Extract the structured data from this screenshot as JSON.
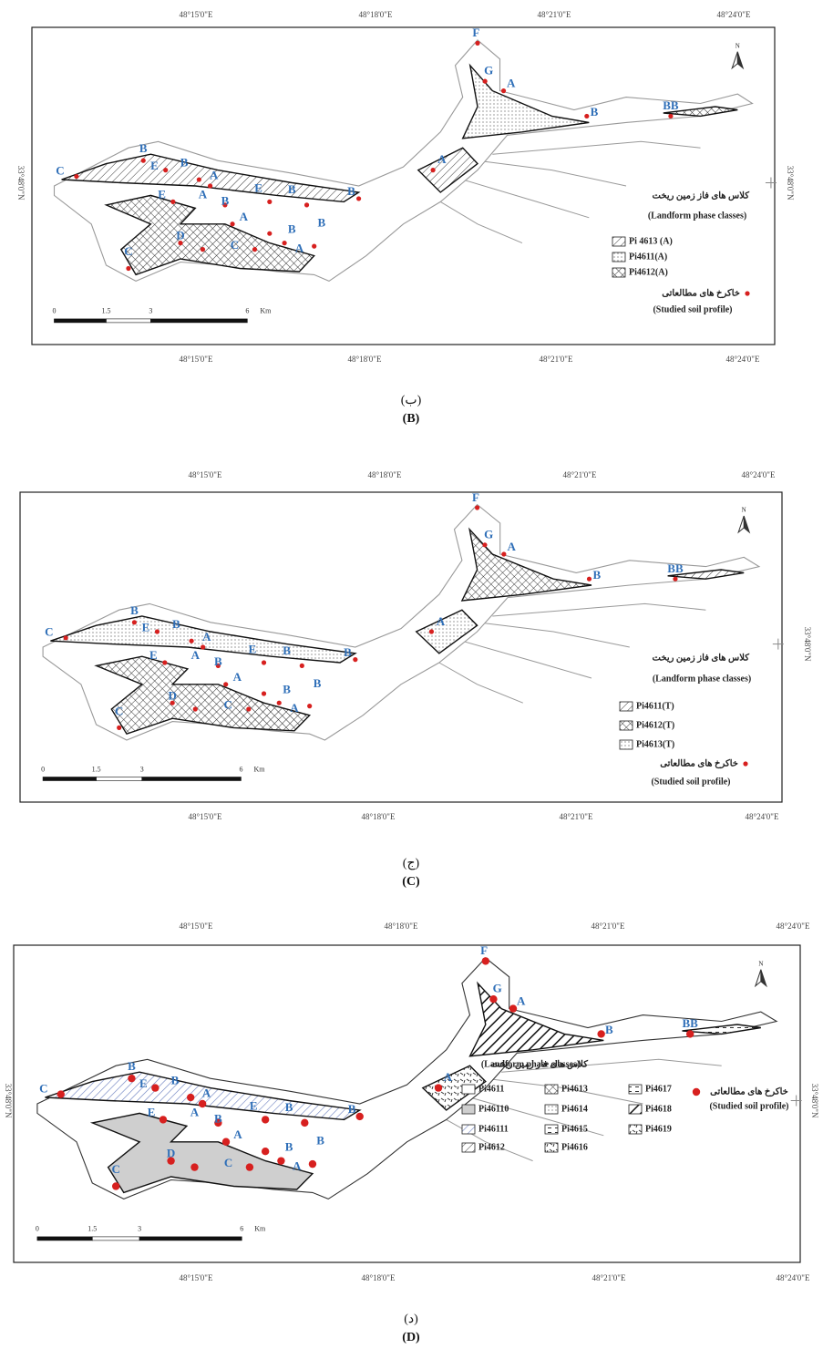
{
  "figure": {
    "panels": [
      {
        "caption_fa": "(ب)",
        "caption_en": "(B)",
        "top_ticks": [
          "48°15'0\"E",
          "48°18'0\"E",
          "48°21'0\"E",
          "48°24'0\"E"
        ],
        "bottom_ticks": [
          "48°15'0\"E",
          "48°18'0\"E",
          "48°21'0\"E",
          "48°24'0\"E"
        ],
        "left_label": "33°48'0\"N",
        "right_label": "33°48'0\"N",
        "north": "N",
        "scale": [
          "0",
          "1.5",
          "3",
          "6",
          "Km"
        ],
        "legend": {
          "title_fa": "کلاس های فاز زمین ریخت",
          "title_en": "(Landform phase classes)",
          "entries": [
            "Pi 4613 (A)",
            "Pi4611(A)",
            "Pi4612(A)"
          ],
          "profile_fa": "خاکرخ های مطالعاتی",
          "profile_en": "(Studied soil profile)"
        },
        "map_labels": [
          "F",
          "G",
          "A",
          "B",
          "BB",
          "A",
          "C",
          "B",
          "E",
          "B",
          "A",
          "E",
          "A",
          "B",
          "E",
          "B",
          "B",
          "A",
          "B",
          "C",
          "C",
          "D",
          "A",
          "B"
        ]
      },
      {
        "caption_fa": "(ج)",
        "caption_en": "(C)",
        "top_ticks": [
          "48°15'0\"E",
          "48°18'0\"E",
          "48°21'0\"E",
          "48°24'0\"E"
        ],
        "bottom_ticks": [
          "48°15'0\"E",
          "48°18'0\"E",
          "48°21'0\"E",
          "48°24'0\"E"
        ],
        "right_label": "33°48'0\"N",
        "north": "N",
        "scale": [
          "0",
          "1.5",
          "3",
          "6",
          "Km"
        ],
        "legend": {
          "title_fa": "کلاس های فاز زمین ریخت",
          "title_en": "(Landform phase classes)",
          "entries": [
            "Pi4611(T)",
            "Pi4612(T)",
            "Pi4613(T)"
          ],
          "profile_fa": "خاکرخ های مطالعاتی",
          "profile_en": "(Studied soil profile)"
        },
        "map_labels": [
          "F",
          "G",
          "A",
          "B",
          "BB",
          "A",
          "C",
          "B",
          "E",
          "B",
          "A",
          "E",
          "A",
          "B",
          "E",
          "B",
          "B",
          "A",
          "B",
          "C",
          "C",
          "D",
          "A",
          "B"
        ]
      },
      {
        "caption_fa": "(د)",
        "caption_en": "(D)",
        "top_ticks": [
          "48°15'0\"E",
          "48°18'0\"E",
          "48°21'0\"E",
          "48°24'0\"E"
        ],
        "bottom_ticks": [
          "48°15'0\"E",
          "48°18'0\"E",
          "48°21'0\"E",
          "48°24'0\"E"
        ],
        "left_label": "33°48'0\"N",
        "right_label": "33°48'0\"N",
        "north": "N",
        "scale": [
          "0",
          "1.5",
          "3",
          "6",
          "Km"
        ],
        "legend": {
          "title_fa": "کلاس های فاز زمین ریخت",
          "title_en": "(Landform phase classes)",
          "entries": [
            "Pi4611",
            "Pi46110",
            "Pi46111",
            "Pi4612",
            "Pi4613",
            "Pi4614",
            "Pi4615",
            "Pi4616",
            "Pi4617",
            "Pi4618",
            "Pi4619"
          ],
          "profile_fa": "خاکرخ های مطالعاتی",
          "profile_en": "(Studied soil profile)"
        },
        "map_labels": [
          "F",
          "G",
          "A",
          "B",
          "BB",
          "A",
          "C",
          "B",
          "E",
          "B",
          "A",
          "E",
          "A",
          "B",
          "E",
          "B",
          "B",
          "A",
          "B",
          "C",
          "C",
          "D",
          "A",
          "B"
        ]
      }
    ]
  }
}
